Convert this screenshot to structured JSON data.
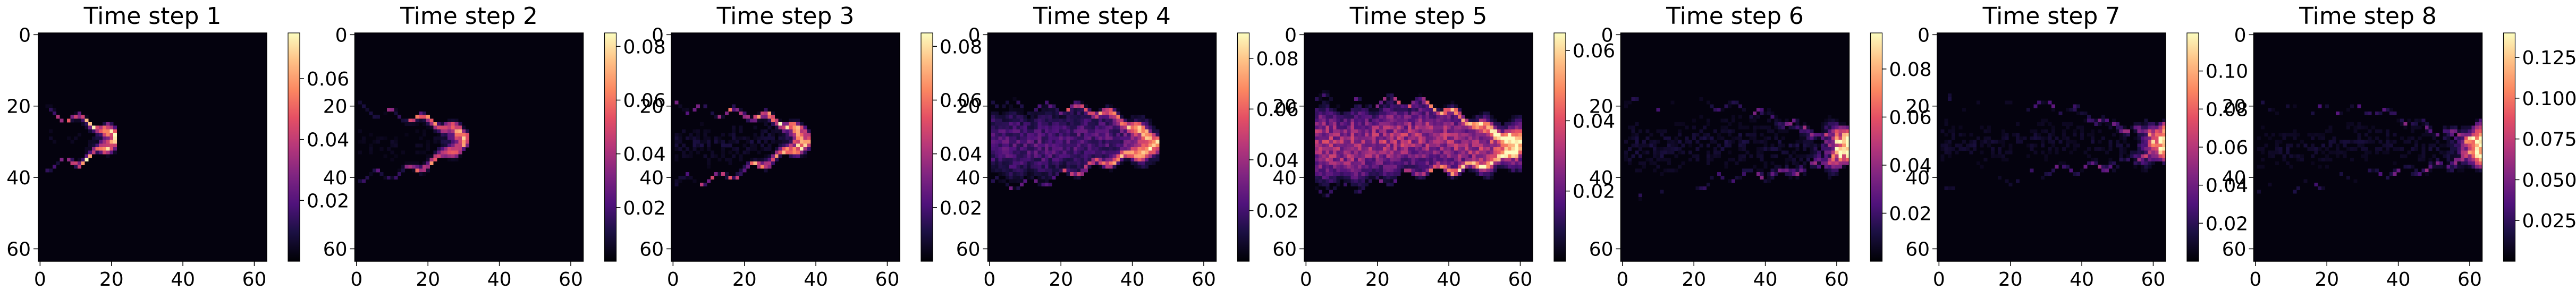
{
  "figure": {
    "cmap": "magma",
    "background": "#ffffff",
    "text_color": "#000000"
  },
  "chart_data": [
    {
      "type": "heatmap",
      "title": "Time step 1",
      "grid_size": 64,
      "xticks": [
        0,
        20,
        40,
        60
      ],
      "yticks": [
        0,
        20,
        40,
        60
      ],
      "colorbar": {
        "vmin": 0.0,
        "vmax": 0.075,
        "ticks": [
          0.02,
          0.04,
          0.06
        ],
        "tick_labels": [
          "0.02",
          "0.04",
          "0.06"
        ]
      },
      "plume": {
        "tip_x": 21,
        "base_x": 2,
        "center_y": 29,
        "half_width": 7,
        "spread": 0.25,
        "max_value": 0.075,
        "front_width": 2.2,
        "interior": 0.12,
        "noise": 0.25,
        "inner": "front"
      }
    },
    {
      "type": "heatmap",
      "title": "Time step 2",
      "grid_size": 64,
      "xticks": [
        0,
        20,
        40,
        60
      ],
      "yticks": [
        0,
        20,
        40,
        60
      ],
      "colorbar": {
        "vmin": 0.0,
        "vmax": 0.085,
        "ticks": [
          0.02,
          0.04,
          0.06,
          0.08
        ],
        "tick_labels": [
          "0.02",
          "0.04",
          "0.06",
          "0.08"
        ]
      },
      "plume": {
        "tip_x": 30,
        "base_x": 2,
        "center_y": 30,
        "half_width": 9,
        "spread": 0.35,
        "max_value": 0.07,
        "front_width": 2.5,
        "interior": 0.15,
        "noise": 0.3,
        "inner": "front"
      }
    },
    {
      "type": "heatmap",
      "title": "Time step 3",
      "grid_size": 64,
      "xticks": [
        0,
        20,
        40,
        60
      ],
      "yticks": [
        0,
        20,
        40,
        60
      ],
      "colorbar": {
        "vmin": 0.0,
        "vmax": 0.085,
        "ticks": [
          0.02,
          0.04,
          0.06,
          0.08
        ],
        "tick_labels": [
          "0.02",
          "0.04",
          "0.06",
          "0.08"
        ]
      },
      "plume": {
        "tip_x": 37,
        "base_x": 2,
        "center_y": 30,
        "half_width": 10,
        "spread": 0.45,
        "max_value": 0.08,
        "front_width": 2.5,
        "interior": 0.2,
        "noise": 0.35,
        "inner": "front"
      }
    },
    {
      "type": "heatmap",
      "title": "Time step 4",
      "grid_size": 64,
      "xticks": [
        0,
        20,
        40,
        60
      ],
      "yticks": [
        0,
        20,
        40,
        60
      ],
      "colorbar": {
        "vmin": 0.0,
        "vmax": 0.09,
        "ticks": [
          0.02,
          0.04,
          0.06,
          0.08
        ],
        "tick_labels": [
          "0.02",
          "0.04",
          "0.06",
          "0.08"
        ]
      },
      "plume": {
        "tip_x": 46,
        "base_x": 2,
        "center_y": 30,
        "half_width": 11,
        "spread": 0.55,
        "max_value": 0.09,
        "front_width": 3,
        "interior": 0.3,
        "noise": 0.35,
        "inner": "core"
      }
    },
    {
      "type": "heatmap",
      "title": "Time step 5",
      "grid_size": 64,
      "xticks": [
        0,
        20,
        40,
        60
      ],
      "yticks": [
        0,
        20,
        40,
        60
      ],
      "colorbar": {
        "vmin": 0.0,
        "vmax": 0.065,
        "ticks": [
          0.02,
          0.04,
          0.06
        ],
        "tick_labels": [
          "0.02",
          "0.04",
          "0.06"
        ]
      },
      "plume": {
        "tip_x": 59,
        "base_x": 4,
        "center_y": 30,
        "half_width": 12,
        "spread": 0.6,
        "max_value": 0.065,
        "front_width": 3,
        "interior": 0.55,
        "noise": 0.3,
        "inner": "core"
      }
    },
    {
      "type": "heatmap",
      "title": "Time step 6",
      "grid_size": 64,
      "xticks": [
        0,
        20,
        40,
        60
      ],
      "yticks": [
        0,
        20,
        40,
        60
      ],
      "colorbar": {
        "vmin": 0.0,
        "vmax": 0.095,
        "ticks": [
          0.02,
          0.04,
          0.06,
          0.08
        ],
        "tick_labels": [
          "0.02",
          "0.04",
          "0.06",
          "0.08"
        ]
      },
      "plume": {
        "tip_x": 63,
        "base_x": 2,
        "center_y": 31,
        "half_width": 12,
        "spread": 0.55,
        "max_value": 0.095,
        "front_width": 4,
        "interior": 0.25,
        "noise": 0.35,
        "inner": "tip"
      }
    },
    {
      "type": "heatmap",
      "title": "Time step 7",
      "grid_size": 64,
      "xticks": [
        0,
        20,
        40,
        60
      ],
      "yticks": [
        0,
        20,
        40,
        60
      ],
      "colorbar": {
        "vmin": 0.0,
        "vmax": 0.12,
        "ticks": [
          0.02,
          0.04,
          0.06,
          0.08,
          0.1
        ],
        "tick_labels": [
          "0.02",
          "0.04",
          "0.06",
          "0.08",
          "0.10"
        ]
      },
      "plume": {
        "tip_x": 63,
        "base_x": 2,
        "center_y": 30,
        "half_width": 11,
        "spread": 0.5,
        "max_value": 0.12,
        "front_width": 3.5,
        "interior": 0.2,
        "noise": 0.3,
        "inner": "tip"
      }
    },
    {
      "type": "heatmap",
      "title": "Time step 8",
      "grid_size": 64,
      "xticks": [
        0,
        20,
        40,
        60
      ],
      "yticks": [
        0,
        20,
        40,
        60
      ],
      "colorbar": {
        "vmin": 0.0,
        "vmax": 0.14,
        "ticks": [
          0.025,
          0.05,
          0.075,
          0.1,
          0.125
        ],
        "tick_labels": [
          "0.025",
          "0.050",
          "0.075",
          "0.100",
          "0.125"
        ]
      },
      "plume": {
        "tip_x": 63,
        "base_x": 2,
        "center_y": 31,
        "half_width": 11,
        "spread": 0.45,
        "max_value": 0.14,
        "front_width": 3.5,
        "interior": 0.2,
        "noise": 0.3,
        "inner": "tip"
      }
    }
  ]
}
